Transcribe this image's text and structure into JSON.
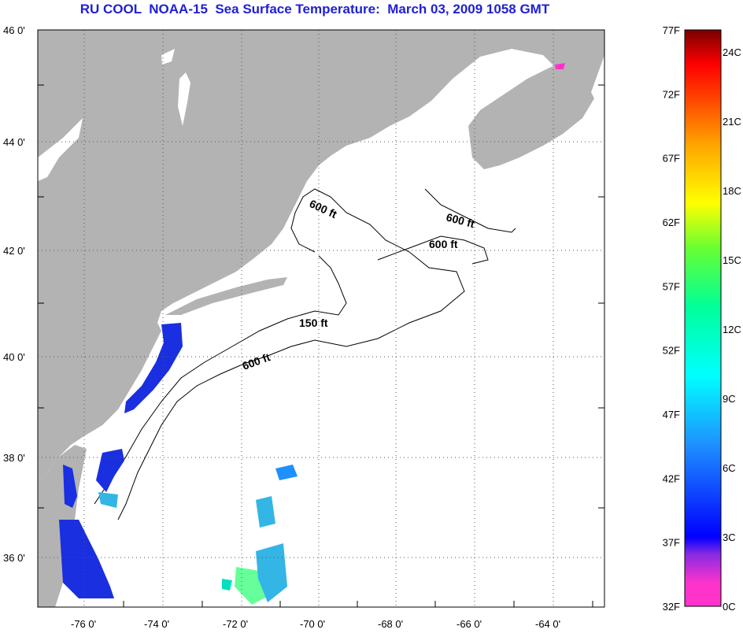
{
  "title": "RU COOL  NOAA-15  Sea Surface Temperature:  March 03, 2009 1058 GMT",
  "map": {
    "lat_labels": [
      "46 0'",
      "44 0'",
      "42 0'",
      "40 0'",
      "38 0'",
      "36 0'"
    ],
    "lon_labels": [
      "-76 0'",
      "-74 0'",
      "-72 0'",
      "-70 0'",
      "-68 0'",
      "-66 0'",
      "-64 0'"
    ],
    "contour_labels": [
      "600 ft",
      "600 ft",
      "600 ft",
      "150 ft",
      "600 ft"
    ],
    "land_color": "#b3b3b3",
    "water_color": "#ffffff"
  },
  "colorbar": {
    "f_labels": [
      "77F",
      "72F",
      "67F",
      "62F",
      "57F",
      "52F",
      "47F",
      "42F",
      "37F",
      "32F"
    ],
    "c_labels": [
      "24C",
      "21C",
      "18C",
      "15C",
      "12C",
      "9C",
      "6C",
      "3C",
      "0C"
    ],
    "colors": [
      "#ff33cc",
      "#8a2be2",
      "#0000ff",
      "#1e90ff",
      "#00ffff",
      "#00ff99",
      "#66ff33",
      "#ffff00",
      "#ffa500",
      "#ff4500",
      "#ff0000",
      "#7a0000"
    ]
  }
}
